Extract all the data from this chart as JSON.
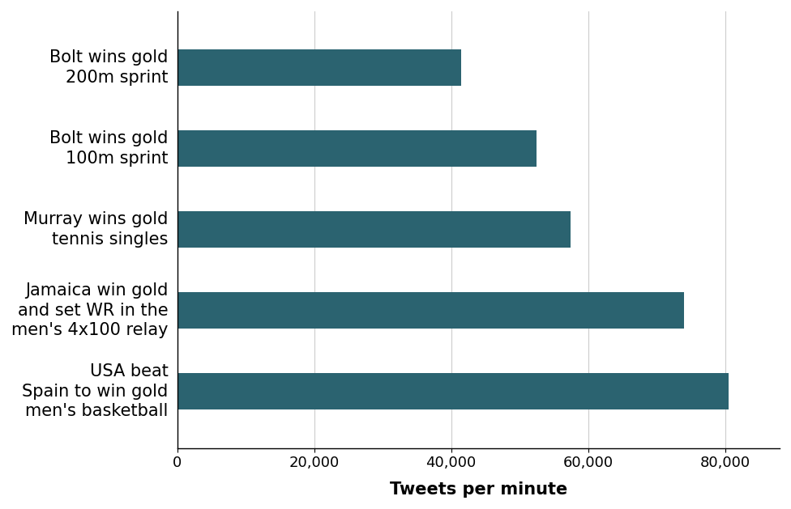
{
  "categories": [
    "Bolt wins gold\n200m sprint",
    "Bolt wins gold\n100m sprint",
    "Murray wins gold\ntennis singles",
    "Jamaica win gold\nand set WR in the\nmen's 4x100 relay",
    "USA beat\nSpain to win gold\nmen's basketball"
  ],
  "values": [
    41500,
    52500,
    57500,
    74000,
    80500
  ],
  "bar_color": "#2b6370",
  "xlabel": "Tweets per minute",
  "xlim": [
    0,
    88000
  ],
  "xticks": [
    0,
    20000,
    40000,
    60000,
    80000
  ],
  "background_color": "#ffffff",
  "xlabel_fontsize": 15,
  "tick_fontsize": 13,
  "label_fontsize": 15
}
